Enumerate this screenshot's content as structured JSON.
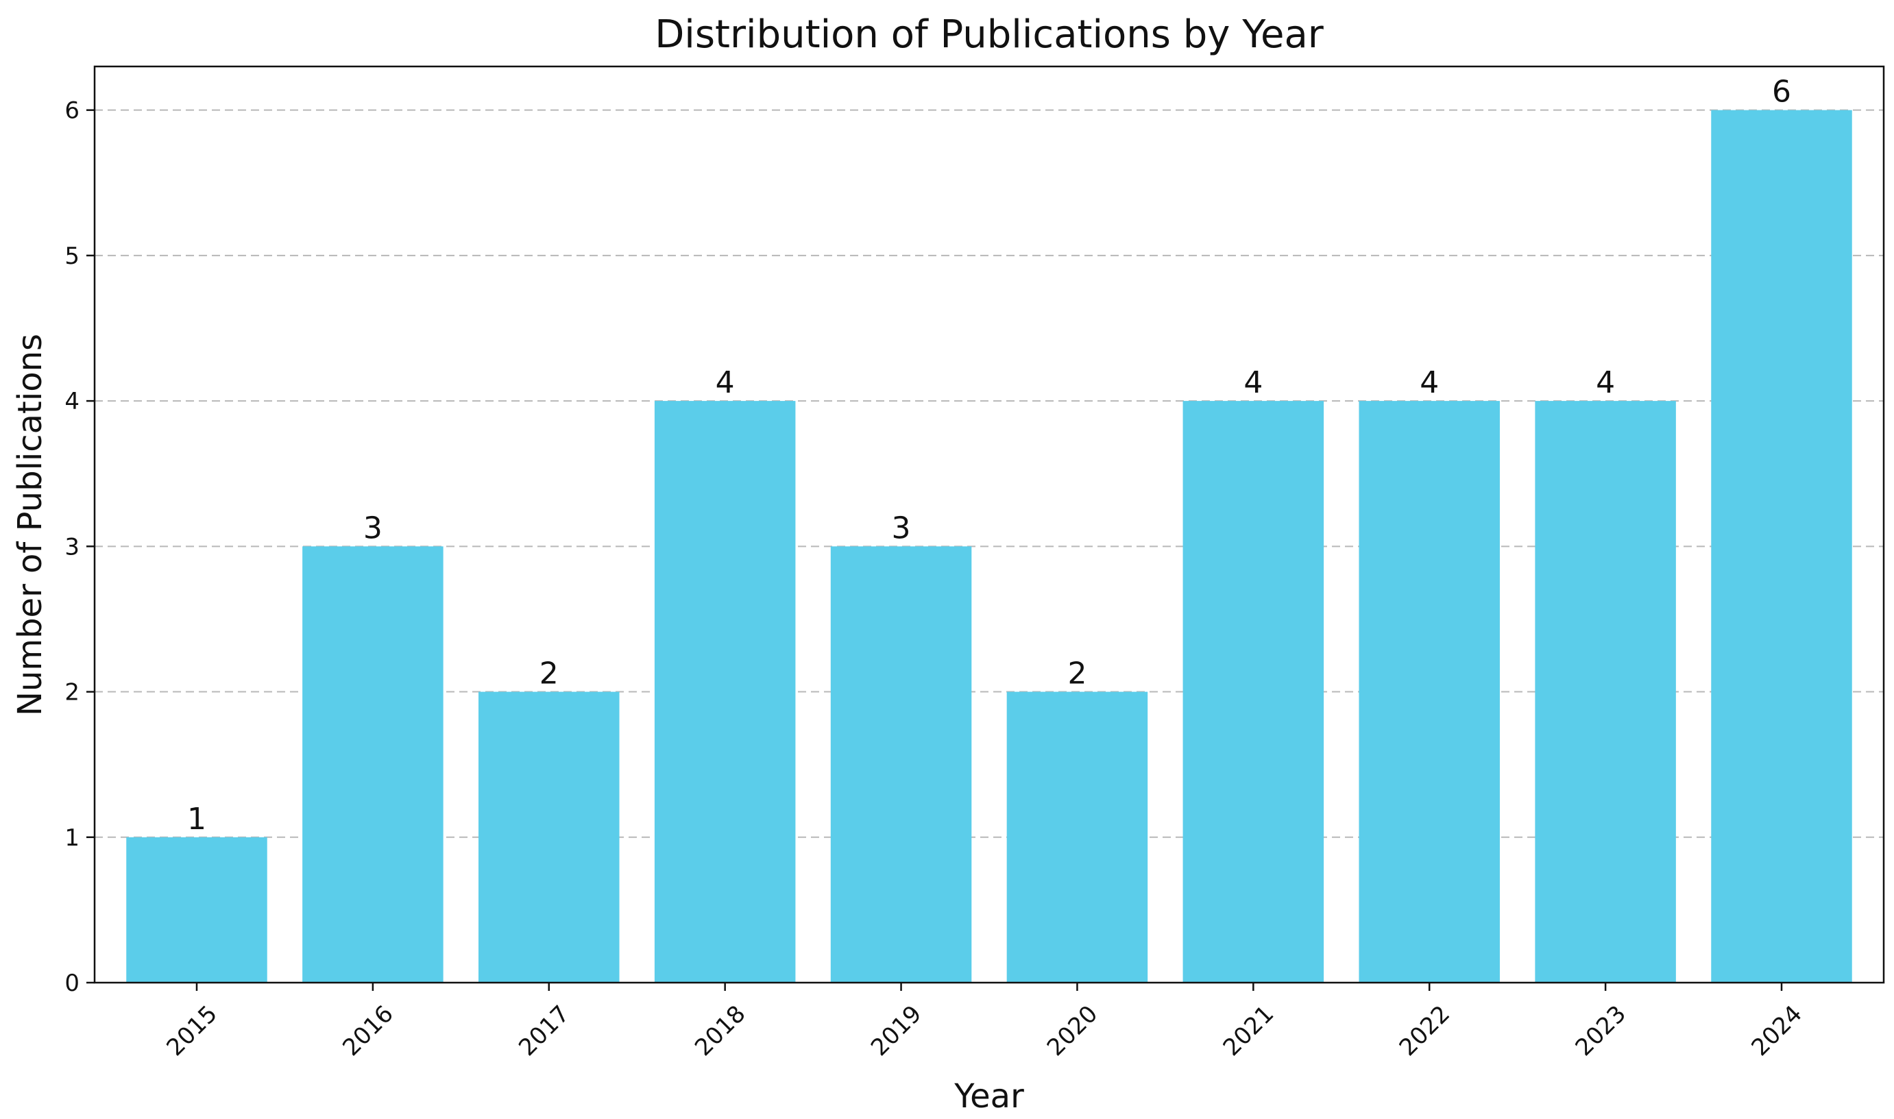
{
  "chart_data": {
    "type": "bar",
    "title": "Distribution of Publications by Year",
    "xlabel": "Year",
    "ylabel": "Number of Publications",
    "categories": [
      "2015",
      "2016",
      "2017",
      "2018",
      "2019",
      "2020",
      "2021",
      "2022",
      "2023",
      "2024"
    ],
    "values": [
      1,
      3,
      2,
      4,
      3,
      2,
      4,
      4,
      4,
      6
    ],
    "value_labels": [
      "1",
      "3",
      "2",
      "4",
      "3",
      "2",
      "4",
      "4",
      "4",
      "6"
    ],
    "yticks": [
      "0",
      "1",
      "2",
      "3",
      "4",
      "5",
      "6"
    ],
    "ylim": [
      0,
      6.3
    ],
    "grid": "y, dashed",
    "legend": "none",
    "bar_color": "#5BCDEA",
    "xtick_rotation": "45deg"
  }
}
